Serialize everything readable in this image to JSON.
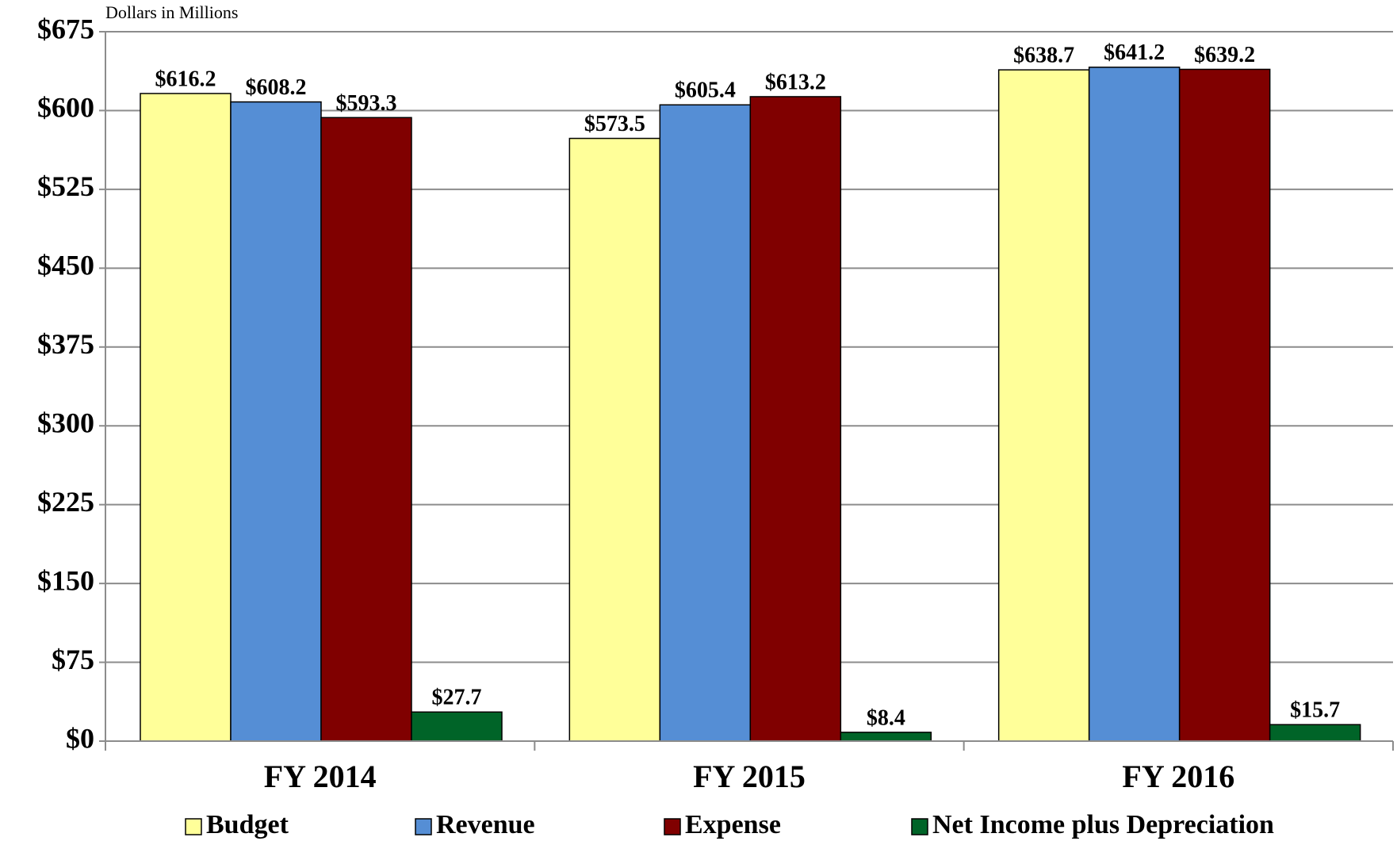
{
  "chart_data": {
    "type": "bar",
    "subtitle": "Dollars in Millions",
    "categories": [
      "FY 2014",
      "FY 2015",
      "FY 2016"
    ],
    "series": [
      {
        "name": "Budget",
        "color": "#ffff99",
        "values": [
          616.2,
          573.5,
          638.7
        ],
        "value_labels": [
          "$616.2",
          "$573.5",
          "$638.7"
        ]
      },
      {
        "name": "Revenue",
        "color": "#558ed5",
        "values": [
          608.2,
          605.4,
          641.2
        ],
        "value_labels": [
          "$608.2",
          "$605.4",
          "$641.2"
        ]
      },
      {
        "name": "Expense",
        "color": "#800000",
        "values": [
          593.3,
          613.2,
          639.2
        ],
        "value_labels": [
          "$593.3",
          "$613.2",
          "$639.2"
        ]
      },
      {
        "name": "Net Income plus Depreciation",
        "color": "#006428",
        "values": [
          27.7,
          8.4,
          15.7
        ],
        "value_labels": [
          "$27.7",
          "$8.4",
          "$15.7"
        ]
      }
    ],
    "ylim": [
      0,
      675
    ],
    "yticks": [
      {
        "value": 0,
        "label": "$0"
      },
      {
        "value": 75,
        "label": "$75"
      },
      {
        "value": 150,
        "label": "$150"
      },
      {
        "value": 225,
        "label": "$225"
      },
      {
        "value": 300,
        "label": "$300"
      },
      {
        "value": 375,
        "label": "$375"
      },
      {
        "value": 450,
        "label": "$450"
      },
      {
        "value": 525,
        "label": "$525"
      },
      {
        "value": 600,
        "label": "$600"
      },
      {
        "value": 675,
        "label": "$675"
      }
    ],
    "grid": true,
    "legend": "bottom"
  }
}
